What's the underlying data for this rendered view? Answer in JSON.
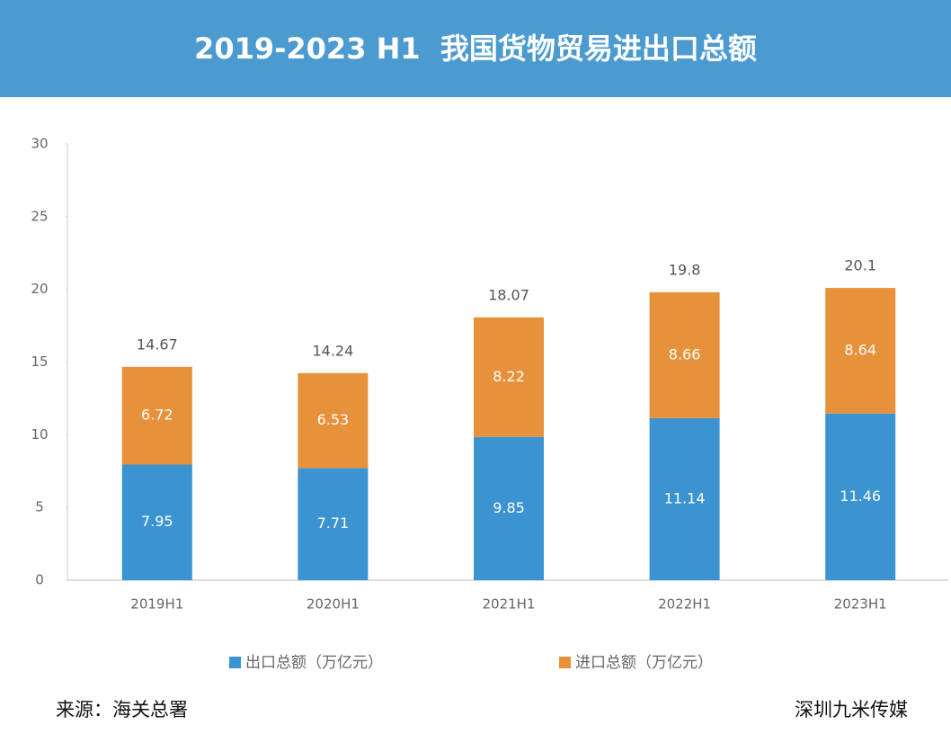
{
  "chart_data": {
    "type": "bar",
    "stacked": true,
    "title": "2019-2023 H1  我国货物贸易进出口总额",
    "categories": [
      "2019H1",
      "2020H1",
      "2021H1",
      "2022H1",
      "2023H1"
    ],
    "series": [
      {
        "name": "出口总额（万亿元）",
        "color": "#3b93d1",
        "values": [
          7.95,
          7.71,
          9.85,
          11.14,
          11.46
        ]
      },
      {
        "name": "进口总额（万亿元）",
        "color": "#e8913b",
        "values": [
          6.72,
          6.53,
          8.22,
          8.66,
          8.64
        ]
      }
    ],
    "total_labels": [
      14.67,
      14.24,
      18.07,
      19.8,
      20.1
    ],
    "ylim": [
      0,
      30
    ],
    "yticks": [
      0,
      5,
      10,
      15,
      20,
      25,
      30
    ],
    "grid": false
  },
  "footer": {
    "source": "来源：海关总署",
    "credit": "深圳九米传媒"
  }
}
